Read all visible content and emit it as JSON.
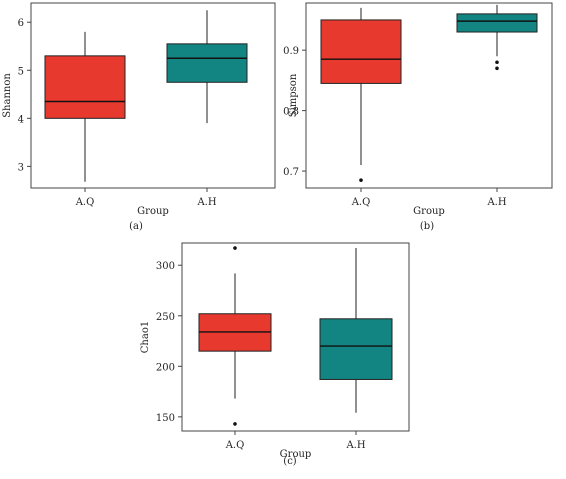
{
  "chart_data": [
    {
      "type": "box",
      "panel_label": "(a)",
      "xlabel": "Group",
      "ylabel": "Shannon",
      "ylim": [
        2.55,
        6.4
      ],
      "yticks": [
        3,
        4,
        5,
        6
      ],
      "categories": [
        "A.Q",
        "A.H"
      ],
      "boxes": [
        {
          "group": "A.Q",
          "whisker_low": 2.68,
          "q1": 4.0,
          "median": 4.35,
          "q3": 5.3,
          "whisker_high": 5.8,
          "outliers": [],
          "color": "#e8392f"
        },
        {
          "group": "A.H",
          "whisker_low": 3.9,
          "q1": 4.75,
          "median": 5.25,
          "q3": 5.55,
          "whisker_high": 6.25,
          "outliers": [],
          "color": "#128482"
        }
      ]
    },
    {
      "type": "box",
      "panel_label": "(b)",
      "xlabel": "Group",
      "ylabel": "Simpson",
      "ylim": [
        0.672,
        0.978
      ],
      "yticks": [
        0.7,
        0.8,
        0.9
      ],
      "categories": [
        "A.Q",
        "A.H"
      ],
      "boxes": [
        {
          "group": "A.Q",
          "whisker_low": 0.71,
          "q1": 0.845,
          "median": 0.885,
          "q3": 0.95,
          "whisker_high": 0.97,
          "outliers": [
            0.685
          ],
          "color": "#e8392f"
        },
        {
          "group": "A.H",
          "whisker_low": 0.89,
          "q1": 0.93,
          "median": 0.948,
          "q3": 0.96,
          "whisker_high": 0.975,
          "outliers": [
            0.88,
            0.87
          ],
          "color": "#128482"
        }
      ]
    },
    {
      "type": "box",
      "panel_label": "(c)",
      "xlabel": "Group",
      "ylabel": "Chao1",
      "ylim": [
        136,
        322
      ],
      "yticks": [
        150,
        200,
        250,
        300
      ],
      "categories": [
        "A.Q",
        "A.H"
      ],
      "boxes": [
        {
          "group": "A.Q",
          "whisker_low": 168,
          "q1": 215,
          "median": 234,
          "q3": 252,
          "whisker_high": 292,
          "outliers": [
            317,
            143
          ],
          "color": "#e8392f"
        },
        {
          "group": "A.H",
          "whisker_low": 154,
          "q1": 187,
          "median": 220,
          "q3": 247,
          "whisker_high": 317,
          "outliers": [],
          "color": "#128482"
        }
      ]
    }
  ]
}
